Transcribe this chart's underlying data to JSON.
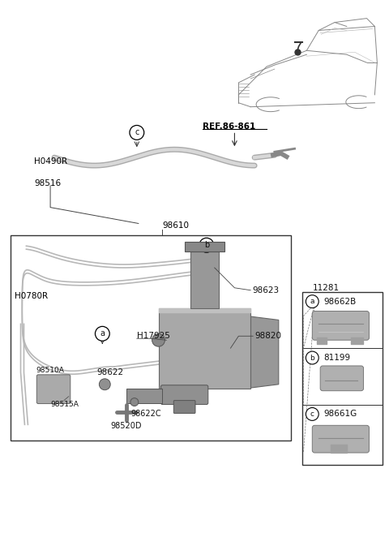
{
  "bg_color": "#ffffff",
  "gray_line": "#b0b0b0",
  "dark_line": "#444444",
  "part_gray": "#a0a0a0",
  "upper_hose_label": "H0490R",
  "upper_hose_num": "98516",
  "ref_label": "REF.86-861",
  "assembly_num": "98610",
  "inner_hose_label": "H0780R",
  "inner_hose_num2": "H17925",
  "label_98623": "98623",
  "label_98820": "98820",
  "label_98510A": "98510A",
  "label_98515A": "98515A",
  "label_98622": "98622",
  "label_98622C": "98622C",
  "label_98520D": "98520D",
  "label_11281": "11281",
  "legend_items": [
    {
      "label": "a",
      "part": "98662B"
    },
    {
      "label": "b",
      "part": "81199"
    },
    {
      "label": "c",
      "part": "98661G"
    }
  ]
}
